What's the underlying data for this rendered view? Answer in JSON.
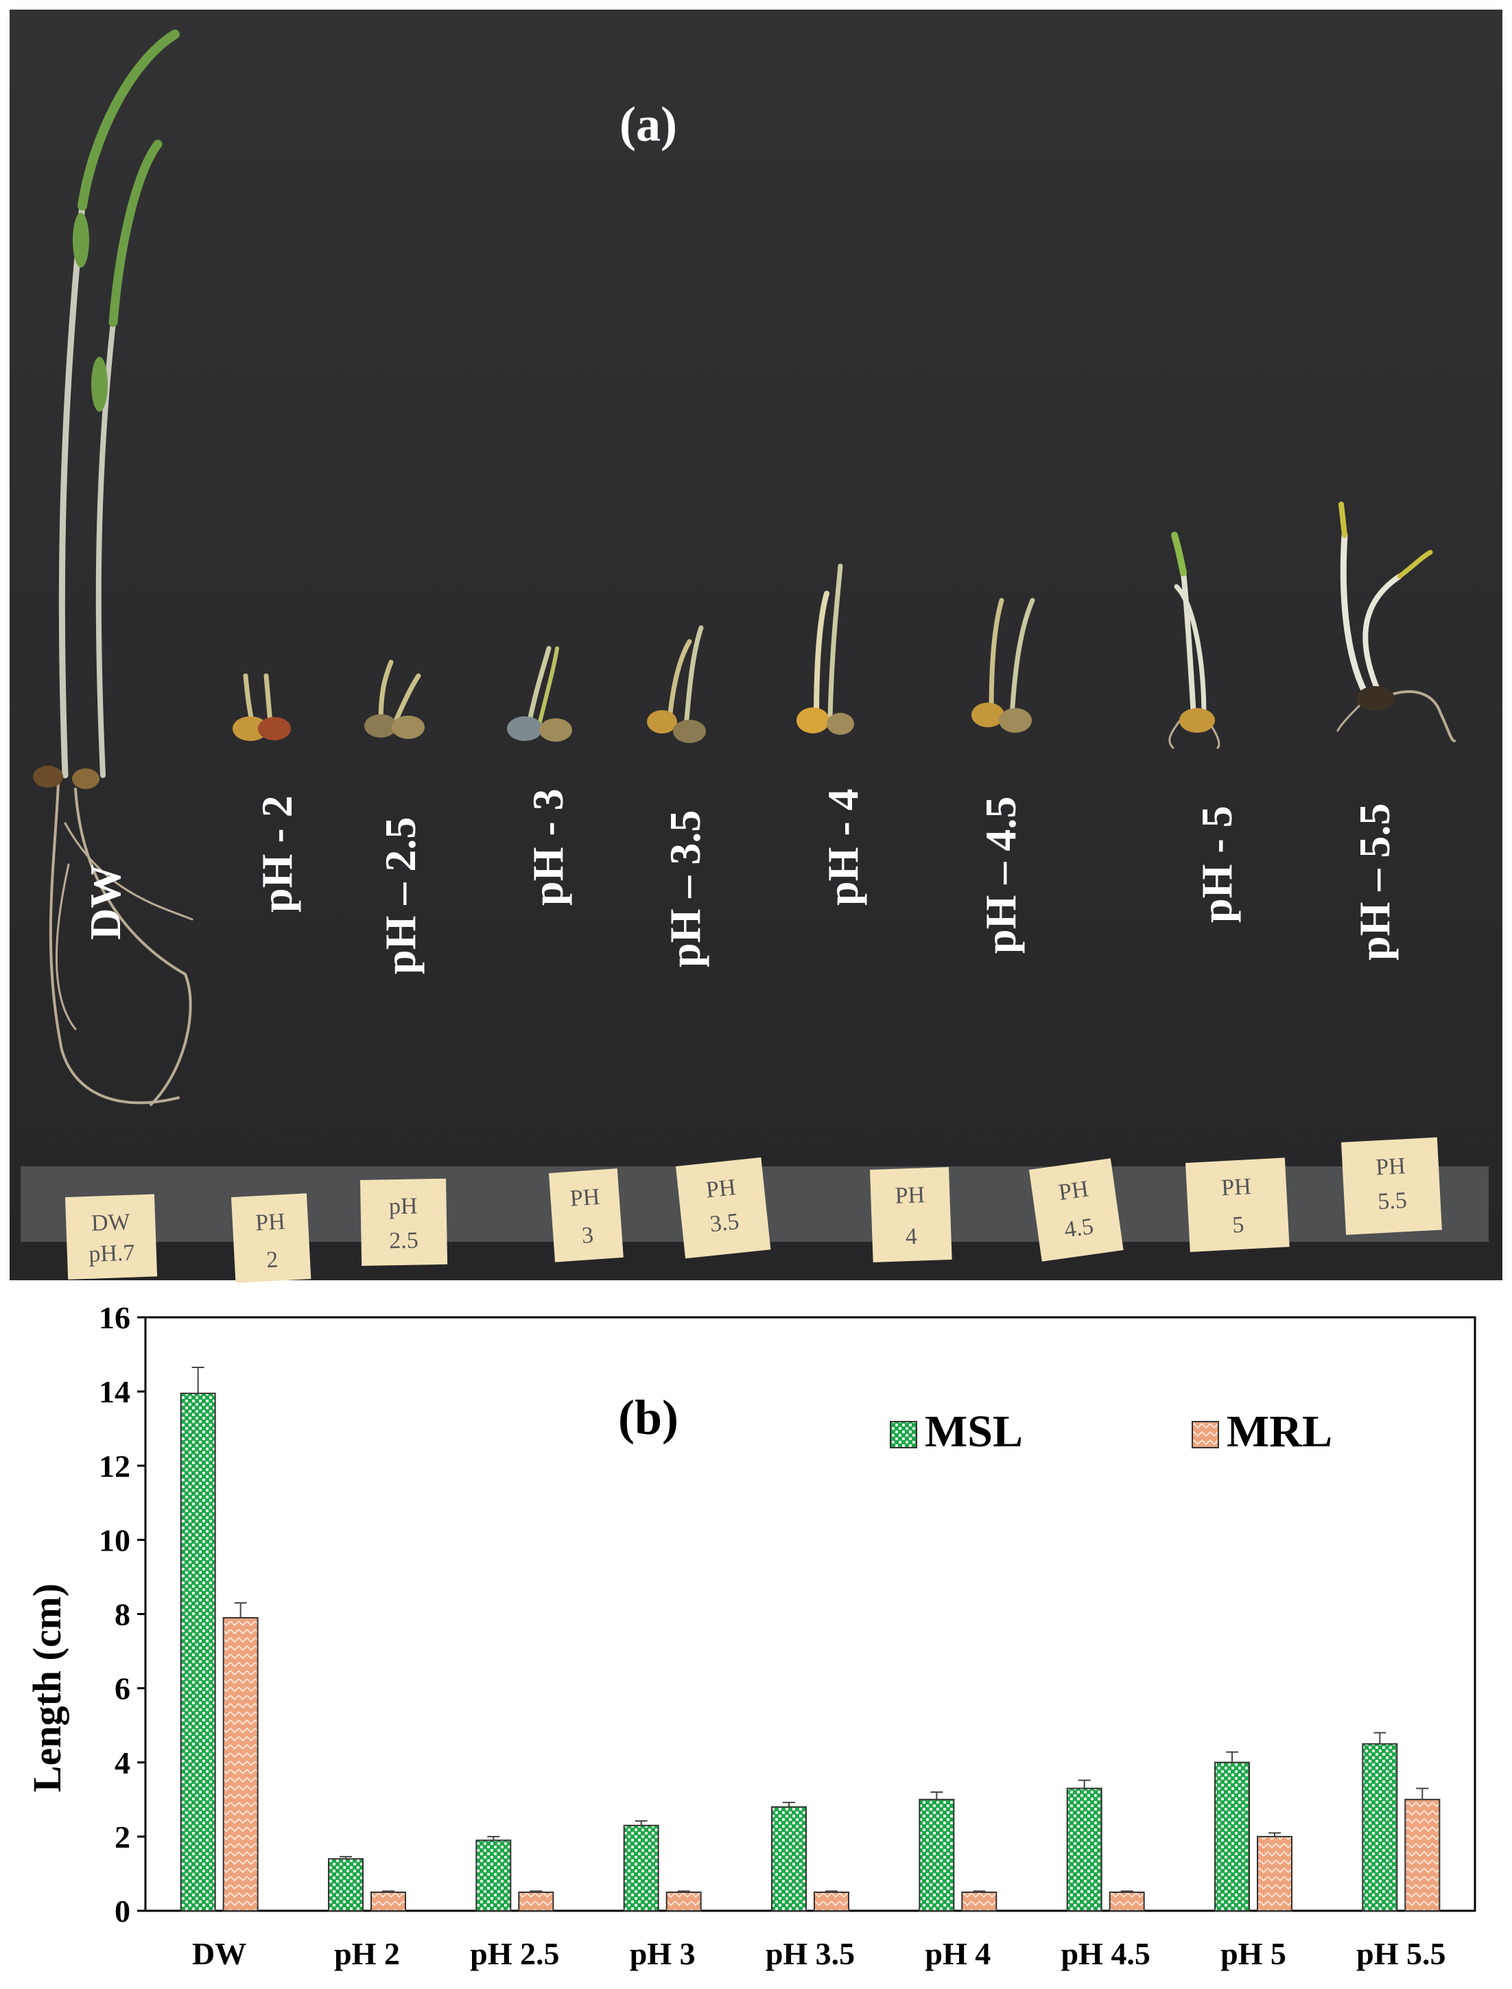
{
  "panel_a": {
    "panel_label": "(a)",
    "rotated_labels": [
      "DW",
      "pH - 2",
      "pH – 2.5",
      "pH - 3",
      "pH – 3.5",
      "pH - 4",
      "pH – 4.5",
      "pH - 5",
      "pH – 5.5"
    ],
    "tags": [
      [
        "DW",
        "pH.7"
      ],
      [
        "PH",
        "2"
      ],
      [
        "pH",
        "2.5"
      ],
      [
        "PH",
        "3"
      ],
      [
        "PH",
        "3.5"
      ],
      [
        "PH",
        "4"
      ],
      [
        "PH",
        "4.5"
      ],
      [
        "PH",
        "5"
      ],
      [
        "PH",
        "5.5"
      ]
    ],
    "background_color": "#2b2b2d",
    "tag_color": "#f3e2b8"
  },
  "chart_data": {
    "type": "bar",
    "panel_label": "(b)",
    "categories": [
      "DW",
      "pH 2",
      "pH 2.5",
      "pH 3",
      "pH 3.5",
      "pH 4",
      "pH 4.5",
      "pH 5",
      "pH 5.5"
    ],
    "series": [
      {
        "name": "MSL",
        "values": [
          13.95,
          1.4,
          1.9,
          2.3,
          2.8,
          3.0,
          3.3,
          4.0,
          4.5
        ],
        "errors": [
          0.7,
          0.06,
          0.1,
          0.12,
          0.12,
          0.2,
          0.22,
          0.28,
          0.3
        ],
        "color": "#1fa74a"
      },
      {
        "name": "MRL",
        "values": [
          7.9,
          0.5,
          0.5,
          0.5,
          0.5,
          0.5,
          0.5,
          2.0,
          3.0
        ],
        "errors": [
          0.4,
          0.03,
          0.03,
          0.03,
          0.03,
          0.03,
          0.03,
          0.1,
          0.3
        ],
        "color": "#eda47e"
      }
    ],
    "xlabel": "",
    "ylabel": "Length (cm)",
    "ylim": [
      0,
      16
    ],
    "yticks": [
      0,
      2,
      4,
      6,
      8,
      10,
      12,
      14,
      16
    ],
    "legend": "top-right",
    "grid": false
  }
}
